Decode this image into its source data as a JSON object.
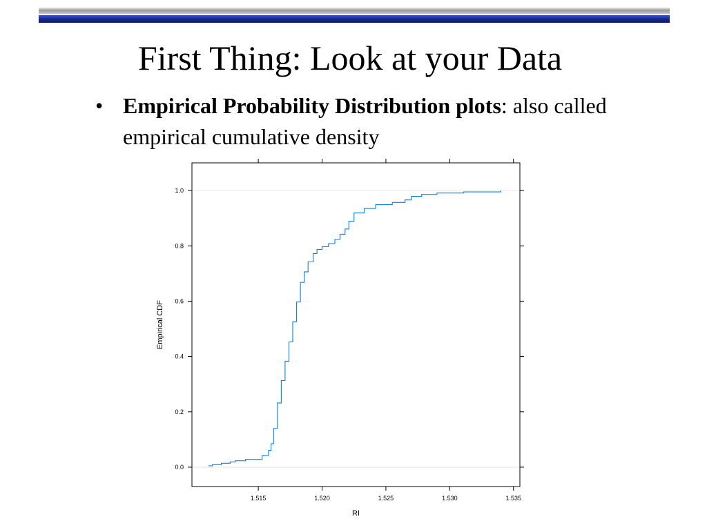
{
  "slide": {
    "title": "First Thing: Look at your Data",
    "bullet": {
      "marker": "•",
      "bold_text": "Empirical Probability Distribution plots",
      "rest_text": ": also called empirical cumulative density"
    }
  },
  "colors": {
    "line": "#0080ff",
    "frame": "#000000",
    "gridline": "#e6e6e6",
    "title_bar_blue": "#13268a",
    "title_bar_gray": "#9a9a9a"
  },
  "chart_data": {
    "type": "line",
    "step": true,
    "xlabel": "RI",
    "ylabel": "Empirical CDF",
    "xlim": [
      1.5098,
      1.5355
    ],
    "ylim": [
      -0.07,
      1.1
    ],
    "xticks": [
      "1.515",
      "1.520",
      "1.525",
      "1.530",
      "1.535"
    ],
    "yticks": [
      "0.0",
      "0.2",
      "0.4",
      "0.6",
      "0.8",
      "1.0"
    ],
    "reference_lines_y": [
      0,
      1
    ],
    "series": [
      {
        "x": [
          1.5111,
          1.5114,
          1.5121,
          1.5128,
          1.5132,
          1.514,
          1.5153,
          1.5158,
          1.516,
          1.5162,
          1.5165,
          1.5168,
          1.5171,
          1.5174,
          1.5177,
          1.518,
          1.5183,
          1.5186,
          1.5189,
          1.5193,
          1.5196,
          1.52,
          1.5205,
          1.521,
          1.5214,
          1.5218,
          1.5221,
          1.5225,
          1.5233,
          1.5242,
          1.5255,
          1.5265,
          1.527,
          1.5278,
          1.529,
          1.5311,
          1.534
        ],
        "y": [
          0.005,
          0.009,
          0.014,
          0.019,
          0.023,
          0.028,
          0.042,
          0.061,
          0.085,
          0.14,
          0.232,
          0.313,
          0.383,
          0.453,
          0.526,
          0.597,
          0.668,
          0.706,
          0.742,
          0.772,
          0.787,
          0.797,
          0.808,
          0.823,
          0.842,
          0.861,
          0.889,
          0.919,
          0.935,
          0.949,
          0.957,
          0.966,
          0.979,
          0.986,
          0.991,
          0.995,
          1.0
        ]
      }
    ]
  }
}
